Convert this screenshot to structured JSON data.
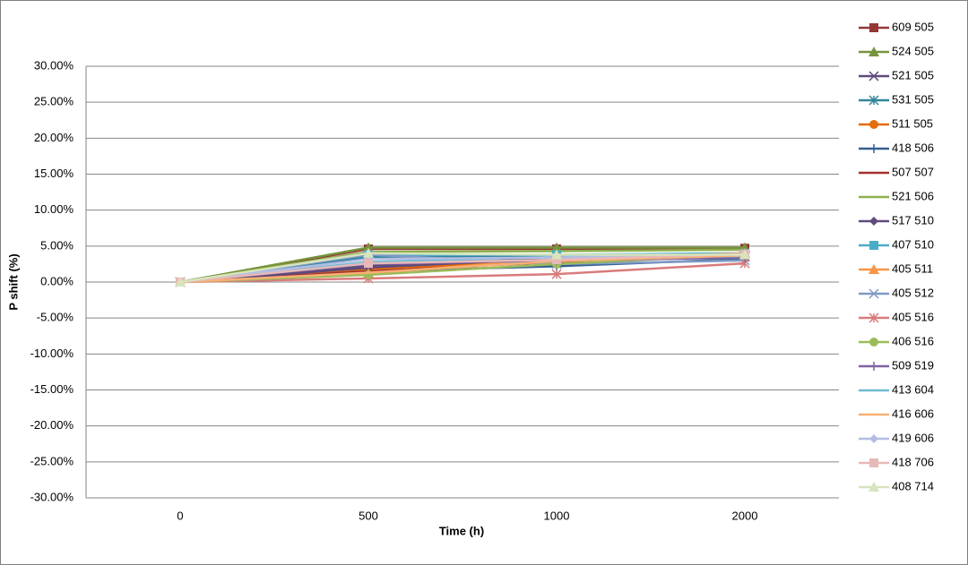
{
  "chart_data": {
    "type": "line",
    "x_label": "Time (h)",
    "y_label": "P  shift (%)",
    "categories": [
      "0",
      "500",
      "1000",
      "2000"
    ],
    "ylim": [
      -30,
      30
    ],
    "yticks": [
      {
        "value": -30,
        "label": "-30.00%"
      },
      {
        "value": -25,
        "label": "-25.00%"
      },
      {
        "value": -20,
        "label": "-20.00%"
      },
      {
        "value": -15,
        "label": "-15.00%"
      },
      {
        "value": -10,
        "label": "-10.00%"
      },
      {
        "value": -5,
        "label": "-5.00%"
      },
      {
        "value": 0,
        "label": "0.00%"
      },
      {
        "value": 5,
        "label": "5.00%"
      },
      {
        "value": 10,
        "label": "10.00%"
      },
      {
        "value": 15,
        "label": "15.00%"
      },
      {
        "value": 20,
        "label": "20.00%"
      },
      {
        "value": 25,
        "label": "25.00%"
      },
      {
        "value": 30,
        "label": "30.00%"
      }
    ],
    "grid": true,
    "legend": "right",
    "series": [
      {
        "name": "609 505",
        "color": "#953735",
        "marker": "square",
        "values": [
          0,
          4.6,
          4.6,
          4.7
        ]
      },
      {
        "name": "524 505",
        "color": "#77933c",
        "marker": "triangle",
        "values": [
          0,
          4.8,
          4.8,
          4.8
        ]
      },
      {
        "name": "521 505",
        "color": "#5f497a",
        "marker": "x",
        "values": [
          0,
          2.3,
          3.3,
          3.5
        ]
      },
      {
        "name": "531 505",
        "color": "#31859c",
        "marker": "star",
        "values": [
          0,
          3.5,
          3.5,
          3.8
        ]
      },
      {
        "name": "511 505",
        "color": "#e46c0a",
        "marker": "circle",
        "values": [
          0,
          1.8,
          3.0,
          3.5
        ]
      },
      {
        "name": "418 506",
        "color": "#376092",
        "marker": "plus",
        "values": [
          0,
          1.5,
          2.2,
          3.2
        ]
      },
      {
        "name": "507 507",
        "color": "#a5302c",
        "marker": "none",
        "values": [
          0,
          1.5,
          2.8,
          4.0
        ]
      },
      {
        "name": "521 506",
        "color": "#8eb04e",
        "marker": "none",
        "values": [
          0,
          4.2,
          4.3,
          4.5
        ]
      },
      {
        "name": "517 510",
        "color": "#604a7b",
        "marker": "diamond",
        "values": [
          0,
          2.0,
          3.3,
          3.6
        ]
      },
      {
        "name": "407 510",
        "color": "#4bacc6",
        "marker": "square",
        "values": [
          0,
          3.8,
          3.8,
          4.0
        ]
      },
      {
        "name": "405 511",
        "color": "#f79646",
        "marker": "triangle",
        "values": [
          0,
          1.2,
          3.2,
          4.0
        ]
      },
      {
        "name": "405 512",
        "color": "#7f9ac4",
        "marker": "x",
        "values": [
          0,
          3.8,
          2.5,
          3.0
        ]
      },
      {
        "name": "405 516",
        "color": "#d97b7b",
        "marker": "star",
        "values": [
          0,
          0.5,
          1.1,
          2.6
        ]
      },
      {
        "name": "406 516",
        "color": "#9bbb59",
        "marker": "circle",
        "values": [
          0,
          1.0,
          2.5,
          3.8
        ]
      },
      {
        "name": "509 519",
        "color": "#8064a2",
        "marker": "plus",
        "values": [
          0,
          2.5,
          3.0,
          3.4
        ]
      },
      {
        "name": "413 604",
        "color": "#6fbcd2",
        "marker": "none",
        "values": [
          0,
          2.8,
          3.5,
          3.6
        ]
      },
      {
        "name": "416 606",
        "color": "#f9b074",
        "marker": "none",
        "values": [
          0,
          1.3,
          2.9,
          3.7
        ]
      },
      {
        "name": "419 606",
        "color": "#b3bde3",
        "marker": "diamond",
        "values": [
          0,
          3.2,
          3.4,
          3.9
        ]
      },
      {
        "name": "418 706",
        "color": "#e6b9b8",
        "marker": "square",
        "values": [
          0,
          2.6,
          3.1,
          3.9
        ]
      },
      {
        "name": "408 714",
        "color": "#d7e4bd",
        "marker": "triangle",
        "values": [
          0,
          4.0,
          3.8,
          3.8
        ]
      }
    ]
  }
}
